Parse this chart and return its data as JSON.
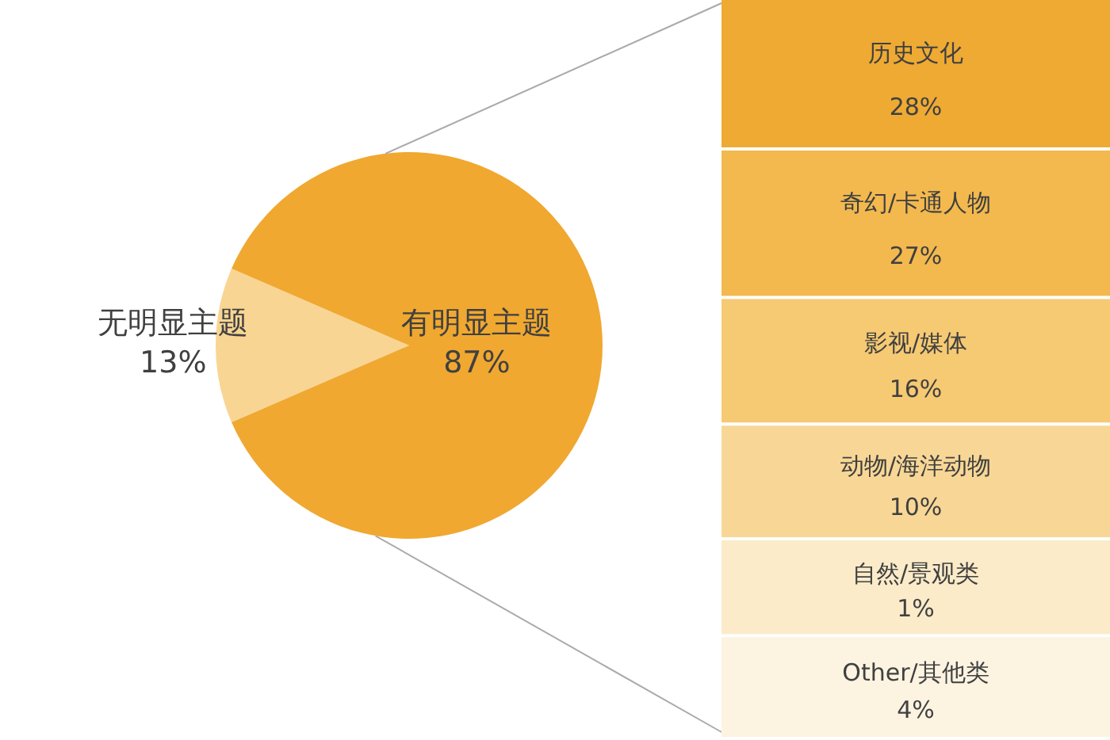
{
  "chart_data": [
    {
      "type": "pie",
      "categories": [
        "无明显主题",
        "有明显主题"
      ],
      "values": [
        13,
        87
      ],
      "colors": [
        "#f9d594",
        "#f0a830"
      ],
      "value_labels": [
        "13%",
        "87%"
      ]
    },
    {
      "type": "other",
      "categories": [
        "历史文化",
        "奇幻/卡通人物",
        "影视/媒体",
        "动物/海洋动物",
        "自然/景观类",
        "Other/其他类"
      ],
      "values": [
        28,
        27,
        16,
        10,
        1,
        4
      ],
      "value_labels": [
        "28%",
        "27%",
        "16%",
        "10%",
        "1%",
        "4%"
      ],
      "colors": [
        "#eeaa33",
        "#f3b94e",
        "#f6c973",
        "#f8d796",
        "#fbebc8",
        "#fcf3e1"
      ]
    }
  ]
}
